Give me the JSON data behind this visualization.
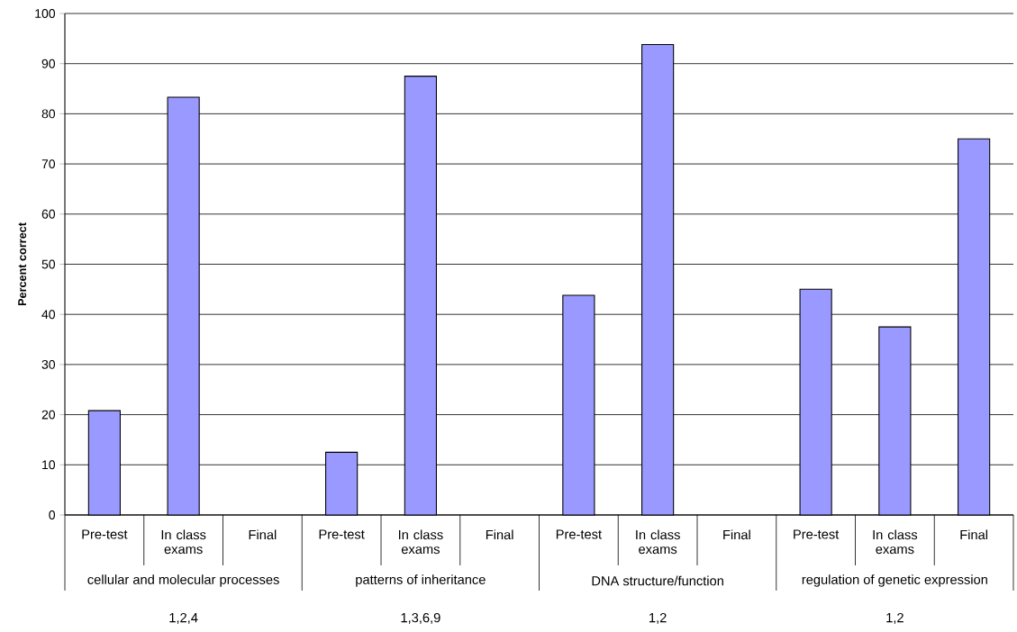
{
  "chart_data": {
    "type": "bar",
    "ylabel": "Percent correct",
    "categories": [
      "Pre-test",
      "In class exams",
      "Final",
      "Pre-test",
      "In class exams",
      "Final",
      "Pre-test",
      "In class exams",
      "Final",
      "Pre-test",
      "In class exams",
      "Final"
    ],
    "values": [
      20.8,
      83.3,
      null,
      12.5,
      87.5,
      null,
      43.8,
      93.8,
      null,
      45,
      37.5,
      75
    ],
    "color": "#9999ff",
    "ylim": [
      0,
      100
    ],
    "yticks": [
      0,
      10,
      20,
      30,
      40,
      50,
      60,
      70,
      80,
      90,
      100
    ],
    "grid": "y",
    "annotations": [
      "cellular and molecular processes",
      "patterns of inheritance",
      "DNA structure/function",
      "regulation of genetic expression",
      "1,2,4",
      "1,3,6,9",
      "1,2",
      "1,2"
    ]
  }
}
